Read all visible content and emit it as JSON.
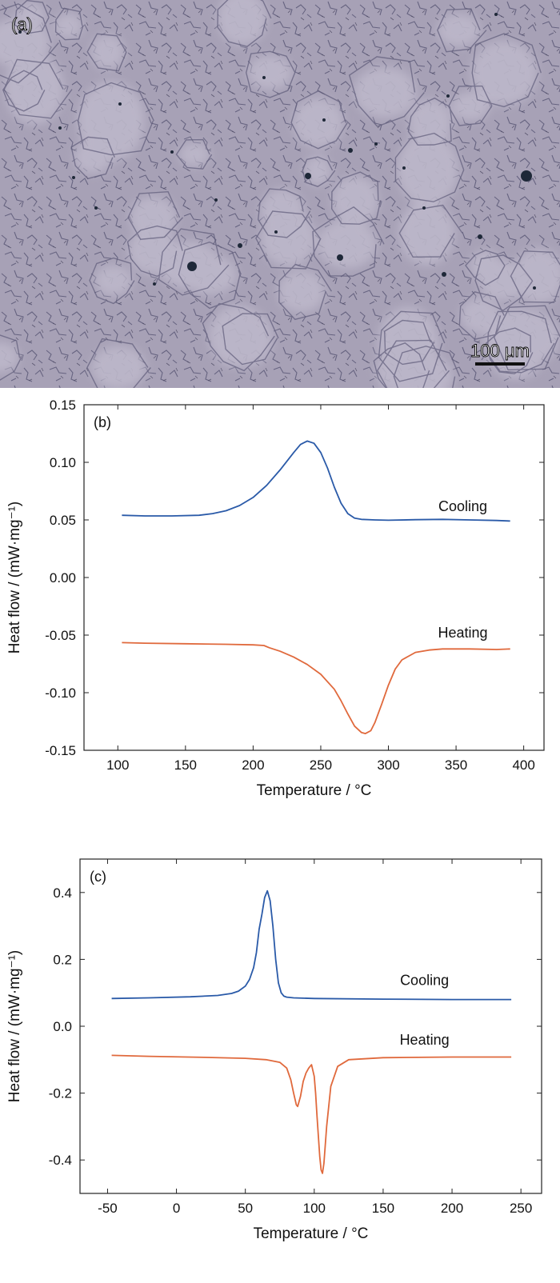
{
  "panel_a": {
    "label": "(a)",
    "scale_bar_text": "100 μm",
    "colors": {
      "background": "#a59fb4",
      "cells": "#b8b3c6",
      "boundaries": "#5d5a78",
      "pores": "#1f2a3a"
    }
  },
  "chart_data": [
    {
      "type": "line",
      "panel_label": "(b)",
      "xlabel": "Temperature / °C",
      "ylabel": "Heat flow / (mW·mg⁻¹)",
      "xlim": [
        75,
        415
      ],
      "ylim": [
        -0.15,
        0.15
      ],
      "xticks": [
        100,
        150,
        200,
        250,
        300,
        350,
        400
      ],
      "xtick_labels": [
        "100",
        "150",
        "200",
        "250",
        "300",
        "350",
        "400"
      ],
      "yticks": [
        -0.15,
        -0.1,
        -0.05,
        0.0,
        0.05,
        0.1,
        0.15
      ],
      "ytick_labels": [
        "-0.15",
        "-0.10",
        "-0.05",
        "0.00",
        "0.05",
        "0.10",
        "0.15"
      ],
      "grid": false,
      "series": [
        {
          "name": "Cooling",
          "color": "#2a5aa8",
          "x": [
            103,
            120,
            140,
            160,
            170,
            180,
            190,
            200,
            210,
            220,
            230,
            235,
            240,
            245,
            250,
            255,
            260,
            265,
            270,
            275,
            280,
            290,
            300,
            320,
            340,
            360,
            380,
            390
          ],
          "y": [
            0.054,
            0.0535,
            0.0535,
            0.054,
            0.0555,
            0.058,
            0.0625,
            0.0695,
            0.08,
            0.0935,
            0.1085,
            0.1155,
            0.1185,
            0.1165,
            0.1085,
            0.095,
            0.0785,
            0.0645,
            0.0555,
            0.0515,
            0.0505,
            0.05,
            0.0497,
            0.0502,
            0.0505,
            0.05,
            0.0495,
            0.049
          ]
        },
        {
          "name": "Heating",
          "color": "#e0693c",
          "x": [
            103,
            120,
            150,
            180,
            200,
            208,
            212,
            220,
            230,
            240,
            250,
            260,
            265,
            270,
            275,
            280,
            283,
            287,
            290,
            295,
            300,
            305,
            310,
            320,
            330,
            340,
            360,
            380,
            390
          ],
          "y": [
            -0.0565,
            -0.057,
            -0.0575,
            -0.058,
            -0.0585,
            -0.059,
            -0.061,
            -0.064,
            -0.069,
            -0.0755,
            -0.084,
            -0.097,
            -0.107,
            -0.1185,
            -0.129,
            -0.1345,
            -0.1355,
            -0.133,
            -0.126,
            -0.11,
            -0.0935,
            -0.0795,
            -0.0715,
            -0.065,
            -0.063,
            -0.062,
            -0.062,
            -0.0625,
            -0.062
          ]
        }
      ],
      "annotations": [
        {
          "text": "Cooling",
          "x": 355,
          "y": 0.0575
        },
        {
          "text": "Heating",
          "x": 355,
          "y": -0.052
        }
      ]
    },
    {
      "type": "line",
      "panel_label": "(c)",
      "xlabel": "Temperature / °C",
      "ylabel": "Heat flow / (mW·mg⁻¹)",
      "xlim": [
        -70,
        265
      ],
      "ylim": [
        -0.5,
        0.5
      ],
      "xticks": [
        -50,
        0,
        50,
        100,
        150,
        200,
        250
      ],
      "xtick_labels": [
        "-50",
        "0",
        "50",
        "100",
        "150",
        "200",
        "250"
      ],
      "yticks": [
        -0.4,
        -0.2,
        0.0,
        0.2,
        0.4
      ],
      "ytick_labels": [
        "-0.4",
        "-0.2",
        "0.0",
        "0.2",
        "0.4"
      ],
      "grid": false,
      "series": [
        {
          "name": "Cooling",
          "color": "#2a5aa8",
          "x": [
            -47,
            -20,
            10,
            30,
            40,
            45,
            50,
            53,
            56,
            58,
            60,
            62,
            64,
            66,
            68,
            70,
            72,
            74,
            76,
            78,
            80,
            85,
            100,
            150,
            200,
            243
          ],
          "y": [
            0.083,
            0.085,
            0.088,
            0.092,
            0.098,
            0.105,
            0.12,
            0.14,
            0.175,
            0.22,
            0.29,
            0.335,
            0.385,
            0.405,
            0.375,
            0.3,
            0.2,
            0.13,
            0.1,
            0.09,
            0.087,
            0.085,
            0.083,
            0.081,
            0.08,
            0.08
          ]
        },
        {
          "name": "Heating",
          "color": "#e0693c",
          "x": [
            -47,
            -20,
            20,
            50,
            65,
            75,
            80,
            83,
            85,
            87,
            88,
            90,
            92,
            94,
            96,
            98,
            100,
            101,
            102,
            103,
            104,
            105,
            106,
            107,
            109,
            112,
            117,
            125,
            150,
            200,
            243
          ],
          "y": [
            -0.087,
            -0.09,
            -0.093,
            -0.096,
            -0.1,
            -0.108,
            -0.125,
            -0.16,
            -0.2,
            -0.235,
            -0.24,
            -0.21,
            -0.165,
            -0.14,
            -0.125,
            -0.115,
            -0.15,
            -0.2,
            -0.27,
            -0.33,
            -0.39,
            -0.43,
            -0.44,
            -0.41,
            -0.3,
            -0.18,
            -0.12,
            -0.1,
            -0.094,
            -0.092,
            -0.092
          ]
        }
      ],
      "annotations": [
        {
          "text": "Cooling",
          "x": 180,
          "y": 0.123
        },
        {
          "text": "Heating",
          "x": 180,
          "y": -0.055
        }
      ]
    }
  ]
}
